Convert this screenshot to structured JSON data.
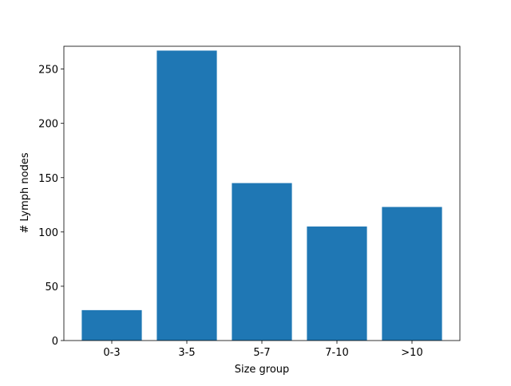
{
  "chart_data": {
    "type": "bar",
    "x_label": "Size group",
    "y_label": "# Lymph nodes",
    "categories": [
      "0-3",
      "3-5",
      "5-7",
      "7-10",
      ">10"
    ],
    "values": [
      28,
      267,
      145,
      105,
      123
    ],
    "color": "#1f77b4",
    "ylim": [
      0,
      271
    ],
    "yticks": [
      0,
      50,
      100,
      150,
      200,
      250
    ]
  }
}
